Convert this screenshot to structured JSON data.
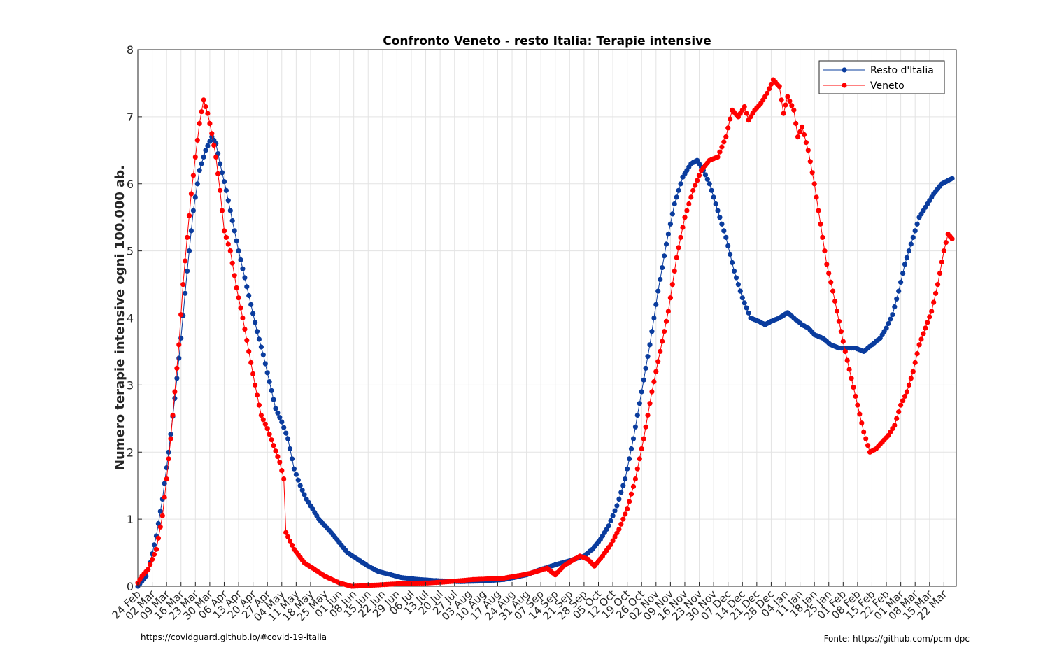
{
  "footer": {
    "left": "https://covidguard.github.io/#covid-19-italia",
    "right": "Fonte: https://github.com/pcm-dpc"
  },
  "colors": {
    "resto": "#0a3c9e",
    "veneto": "#ff0000",
    "grid": "#e3e3e3",
    "axis": "#262626"
  },
  "chart_data": {
    "type": "line",
    "title": "Confronto Veneto - resto Italia: Terapie intensive",
    "xlabel": "",
    "ylabel": "Numero terapie intensive ogni 100.000 ab.",
    "ylim": [
      0,
      8
    ],
    "yticks": [
      0,
      1,
      2,
      3,
      4,
      5,
      6,
      7,
      8
    ],
    "xlim": [
      "2020-02-24",
      "2021-03-28"
    ],
    "grid": true,
    "legend_position": "top-right",
    "x_tick_labels": [
      "24 Feb",
      "02 Mar",
      "09 Mar",
      "16 Mar",
      "23 Mar",
      "30 Mar",
      "06 Apr",
      "13 Apr",
      "20 Apr",
      "27 Apr",
      "04 May",
      "11 May",
      "18 May",
      "25 May",
      "01 Jun",
      "08 Jun",
      "15 Jun",
      "22 Jun",
      "29 Jun",
      "06 Jul",
      "13 Jul",
      "20 Jul",
      "27 Jul",
      "03 Aug",
      "10 Aug",
      "17 Aug",
      "24 Aug",
      "31 Aug",
      "07 Sep",
      "14 Sep",
      "21 Sep",
      "28 Sep",
      "05 Oct",
      "12 Oct",
      "19 Oct",
      "26 Oct",
      "02 Nov",
      "09 Nov",
      "16 Nov",
      "23 Nov",
      "30 Nov",
      "07 Dec",
      "14 Dec",
      "21 Dec",
      "28 Dec",
      "04 Jan",
      "11 Jan",
      "18 Jan",
      "25 Jan",
      "01 Feb",
      "08 Feb",
      "15 Feb",
      "22 Feb",
      "01 Mar",
      "08 Mar",
      "15 Mar",
      "22 Mar"
    ],
    "series": [
      {
        "name": "Resto d'Italia",
        "color": "#0a3c9e",
        "points": [
          [
            "2020-02-24",
            0.0
          ],
          [
            "2020-02-28",
            0.15
          ],
          [
            "2020-03-01",
            0.35
          ],
          [
            "2020-03-04",
            0.75
          ],
          [
            "2020-03-07",
            1.3
          ],
          [
            "2020-03-10",
            2.0
          ],
          [
            "2020-03-13",
            2.8
          ],
          [
            "2020-03-16",
            3.7
          ],
          [
            "2020-03-19",
            4.7
          ],
          [
            "2020-03-22",
            5.6
          ],
          [
            "2020-03-25",
            6.2
          ],
          [
            "2020-03-28",
            6.5
          ],
          [
            "2020-03-31",
            6.7
          ],
          [
            "2020-04-02",
            6.6
          ],
          [
            "2020-04-04",
            6.3
          ],
          [
            "2020-04-07",
            5.9
          ],
          [
            "2020-04-10",
            5.45
          ],
          [
            "2020-04-13",
            5.0
          ],
          [
            "2020-04-16",
            4.6
          ],
          [
            "2020-04-19",
            4.2
          ],
          [
            "2020-04-22",
            3.8
          ],
          [
            "2020-04-25",
            3.45
          ],
          [
            "2020-04-28",
            3.05
          ],
          [
            "2020-05-01",
            2.65
          ],
          [
            "2020-05-04",
            2.45
          ],
          [
            "2020-05-07",
            2.2
          ],
          [
            "2020-05-10",
            1.75
          ],
          [
            "2020-05-13",
            1.5
          ],
          [
            "2020-05-16",
            1.3
          ],
          [
            "2020-05-19",
            1.15
          ],
          [
            "2020-05-22",
            1.0
          ],
          [
            "2020-05-25",
            0.9
          ],
          [
            "2020-05-28",
            0.8
          ],
          [
            "2020-06-01",
            0.65
          ],
          [
            "2020-06-05",
            0.5
          ],
          [
            "2020-06-10",
            0.4
          ],
          [
            "2020-06-15",
            0.3
          ],
          [
            "2020-06-20",
            0.22
          ],
          [
            "2020-06-25",
            0.18
          ],
          [
            "2020-07-01",
            0.13
          ],
          [
            "2020-07-10",
            0.1
          ],
          [
            "2020-07-20",
            0.08
          ],
          [
            "2020-07-30",
            0.07
          ],
          [
            "2020-08-10",
            0.08
          ],
          [
            "2020-08-20",
            0.1
          ],
          [
            "2020-08-31",
            0.17
          ],
          [
            "2020-09-07",
            0.25
          ],
          [
            "2020-09-14",
            0.32
          ],
          [
            "2020-09-21",
            0.38
          ],
          [
            "2020-09-28",
            0.45
          ],
          [
            "2020-10-02",
            0.55
          ],
          [
            "2020-10-06",
            0.7
          ],
          [
            "2020-10-10",
            0.9
          ],
          [
            "2020-10-14",
            1.2
          ],
          [
            "2020-10-18",
            1.6
          ],
          [
            "2020-10-22",
            2.2
          ],
          [
            "2020-10-26",
            2.9
          ],
          [
            "2020-10-30",
            3.6
          ],
          [
            "2020-11-03",
            4.4
          ],
          [
            "2020-11-07",
            5.1
          ],
          [
            "2020-11-11",
            5.7
          ],
          [
            "2020-11-15",
            6.1
          ],
          [
            "2020-11-19",
            6.3
          ],
          [
            "2020-11-22",
            6.35
          ],
          [
            "2020-11-25",
            6.2
          ],
          [
            "2020-11-28",
            6.0
          ],
          [
            "2020-12-02",
            5.6
          ],
          [
            "2020-12-06",
            5.2
          ],
          [
            "2020-12-10",
            4.7
          ],
          [
            "2020-12-14",
            4.3
          ],
          [
            "2020-12-18",
            4.0
          ],
          [
            "2020-12-22",
            3.95
          ],
          [
            "2020-12-25",
            3.9
          ],
          [
            "2020-12-28",
            3.95
          ],
          [
            "2021-01-01",
            4.0
          ],
          [
            "2021-01-05",
            4.08
          ],
          [
            "2021-01-08",
            4.0
          ],
          [
            "2021-01-12",
            3.9
          ],
          [
            "2021-01-15",
            3.85
          ],
          [
            "2021-01-18",
            3.75
          ],
          [
            "2021-01-22",
            3.7
          ],
          [
            "2021-01-26",
            3.6
          ],
          [
            "2021-01-30",
            3.55
          ],
          [
            "2021-02-03",
            3.55
          ],
          [
            "2021-02-07",
            3.55
          ],
          [
            "2021-02-11",
            3.5
          ],
          [
            "2021-02-15",
            3.6
          ],
          [
            "2021-02-19",
            3.7
          ],
          [
            "2021-02-22",
            3.85
          ],
          [
            "2021-02-25",
            4.05
          ],
          [
            "2021-02-28",
            4.4
          ],
          [
            "2021-03-03",
            4.8
          ],
          [
            "2021-03-07",
            5.2
          ],
          [
            "2021-03-10",
            5.5
          ],
          [
            "2021-03-13",
            5.65
          ],
          [
            "2021-03-17",
            5.85
          ],
          [
            "2021-03-21",
            6.0
          ],
          [
            "2021-03-26",
            6.08
          ]
        ]
      },
      {
        "name": "Veneto",
        "color": "#ff0000",
        "points": [
          [
            "2020-02-24",
            0.05
          ],
          [
            "2020-02-26",
            0.15
          ],
          [
            "2020-02-29",
            0.25
          ],
          [
            "2020-03-02",
            0.4
          ],
          [
            "2020-03-04",
            0.55
          ],
          [
            "2020-03-07",
            1.05
          ],
          [
            "2020-03-09",
            1.6
          ],
          [
            "2020-03-11",
            2.2
          ],
          [
            "2020-03-13",
            2.9
          ],
          [
            "2020-03-15",
            3.6
          ],
          [
            "2020-03-17",
            4.5
          ],
          [
            "2020-03-19",
            5.2
          ],
          [
            "2020-03-21",
            5.85
          ],
          [
            "2020-03-23",
            6.4
          ],
          [
            "2020-03-25",
            6.9
          ],
          [
            "2020-03-27",
            7.25
          ],
          [
            "2020-03-29",
            7.05
          ],
          [
            "2020-03-31",
            6.75
          ],
          [
            "2020-04-02",
            6.4
          ],
          [
            "2020-04-04",
            5.9
          ],
          [
            "2020-04-06",
            5.3
          ],
          [
            "2020-04-09",
            5.0
          ],
          [
            "2020-04-12",
            4.45
          ],
          [
            "2020-04-15",
            4.0
          ],
          [
            "2020-04-18",
            3.5
          ],
          [
            "2020-04-21",
            3.0
          ],
          [
            "2020-04-24",
            2.55
          ],
          [
            "2020-04-27",
            2.35
          ],
          [
            "2020-04-30",
            2.1
          ],
          [
            "2020-05-03",
            1.85
          ],
          [
            "2020-05-05",
            1.6
          ],
          [
            "2020-05-06",
            0.8
          ],
          [
            "2020-05-10",
            0.55
          ],
          [
            "2020-05-15",
            0.35
          ],
          [
            "2020-05-20",
            0.25
          ],
          [
            "2020-05-25",
            0.15
          ],
          [
            "2020-06-01",
            0.05
          ],
          [
            "2020-06-07",
            0.0
          ],
          [
            "2020-06-20",
            0.02
          ],
          [
            "2020-07-01",
            0.04
          ],
          [
            "2020-07-15",
            0.05
          ],
          [
            "2020-07-25",
            0.07
          ],
          [
            "2020-08-05",
            0.1
          ],
          [
            "2020-08-20",
            0.12
          ],
          [
            "2020-08-31",
            0.18
          ],
          [
            "2020-09-05",
            0.22
          ],
          [
            "2020-09-10",
            0.27
          ],
          [
            "2020-09-14",
            0.17
          ],
          [
            "2020-09-18",
            0.3
          ],
          [
            "2020-09-22",
            0.38
          ],
          [
            "2020-09-26",
            0.45
          ],
          [
            "2020-09-30",
            0.4
          ],
          [
            "2020-10-03",
            0.3
          ],
          [
            "2020-10-07",
            0.45
          ],
          [
            "2020-10-11",
            0.62
          ],
          [
            "2020-10-15",
            0.85
          ],
          [
            "2020-10-19",
            1.15
          ],
          [
            "2020-10-23",
            1.6
          ],
          [
            "2020-10-27",
            2.2
          ],
          [
            "2020-10-31",
            2.9
          ],
          [
            "2020-11-04",
            3.5
          ],
          [
            "2020-11-08",
            4.1
          ],
          [
            "2020-11-12",
            4.9
          ],
          [
            "2020-11-16",
            5.5
          ],
          [
            "2020-11-20",
            5.9
          ],
          [
            "2020-11-24",
            6.2
          ],
          [
            "2020-11-28",
            6.35
          ],
          [
            "2020-12-02",
            6.4
          ],
          [
            "2020-12-06",
            6.7
          ],
          [
            "2020-12-09",
            7.1
          ],
          [
            "2020-12-12",
            7.0
          ],
          [
            "2020-12-15",
            7.15
          ],
          [
            "2020-12-17",
            6.95
          ],
          [
            "2020-12-20",
            7.1
          ],
          [
            "2020-12-23",
            7.2
          ],
          [
            "2020-12-26",
            7.35
          ],
          [
            "2020-12-29",
            7.55
          ],
          [
            "2021-01-01",
            7.45
          ],
          [
            "2021-01-03",
            7.05
          ],
          [
            "2021-01-05",
            7.3
          ],
          [
            "2021-01-08",
            7.1
          ],
          [
            "2021-01-10",
            6.7
          ],
          [
            "2021-01-12",
            6.85
          ],
          [
            "2021-01-15",
            6.5
          ],
          [
            "2021-01-18",
            6.0
          ],
          [
            "2021-01-21",
            5.4
          ],
          [
            "2021-01-24",
            4.8
          ],
          [
            "2021-01-27",
            4.4
          ],
          [
            "2021-01-30",
            3.95
          ],
          [
            "2021-02-02",
            3.5
          ],
          [
            "2021-02-05",
            3.1
          ],
          [
            "2021-02-08",
            2.7
          ],
          [
            "2021-02-11",
            2.3
          ],
          [
            "2021-02-14",
            2.0
          ],
          [
            "2021-02-17",
            2.05
          ],
          [
            "2021-02-20",
            2.15
          ],
          [
            "2021-02-23",
            2.25
          ],
          [
            "2021-02-26",
            2.4
          ],
          [
            "2021-03-01",
            2.7
          ],
          [
            "2021-03-04",
            2.9
          ],
          [
            "2021-03-07",
            3.2
          ],
          [
            "2021-03-10",
            3.6
          ],
          [
            "2021-03-13",
            3.85
          ],
          [
            "2021-03-16",
            4.1
          ],
          [
            "2021-03-19",
            4.5
          ],
          [
            "2021-03-22",
            5.0
          ],
          [
            "2021-03-24",
            5.25
          ],
          [
            "2021-03-26",
            5.18
          ]
        ]
      }
    ]
  }
}
